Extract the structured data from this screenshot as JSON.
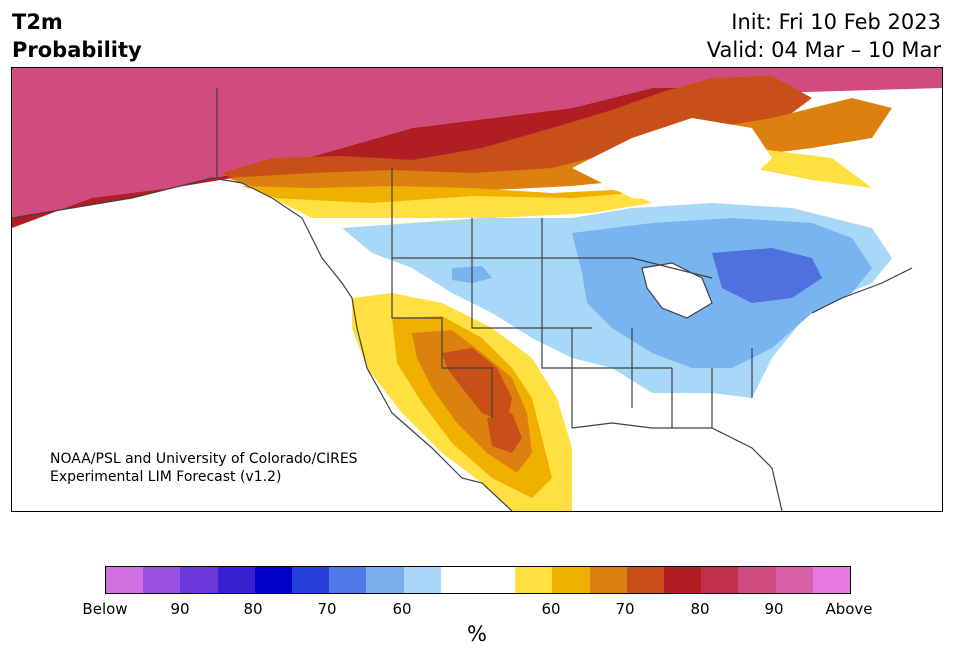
{
  "header": {
    "title_line1": "T2m",
    "title_line2": "Probability",
    "init": "Init: Fri 10 Feb 2023",
    "valid": "Valid: 04 Mar – 10 Mar"
  },
  "map": {
    "credit_line1": "NOAA/PSL and University of Colorado/CIRES",
    "credit_line2": "Experimental LIM Forecast (v1.2)",
    "colors": {
      "above_90": "#d04c7e",
      "above_80": "#b01e24",
      "above_75": "#c0372c",
      "above_70": "#c85018",
      "above_65": "#dc8010",
      "above_60": "#f0b000",
      "above_50": "#ffe040",
      "below_50": "#a8d8f8",
      "below_60": "#78b4f0",
      "below_70": "#5070e0",
      "land": "#ffffff",
      "borders": "#404040"
    }
  },
  "colorbar": {
    "colors": [
      "#d070e0",
      "#9850e0",
      "#6a38d8",
      "#3820d0",
      "#0000c8",
      "#2840d8",
      "#5078e8",
      "#78b0f0",
      "#a8d8f8",
      "#ffffff",
      "#ffffff",
      "#ffe040",
      "#f0b000",
      "#dc8010",
      "#c85018",
      "#b01e24",
      "#c0304c",
      "#d04c7e",
      "#d860a8",
      "#e878e0"
    ],
    "ticks": [
      "Below",
      "90",
      "80",
      "70",
      "60",
      "60",
      "70",
      "80",
      "90",
      "Above"
    ],
    "unit": "%"
  }
}
